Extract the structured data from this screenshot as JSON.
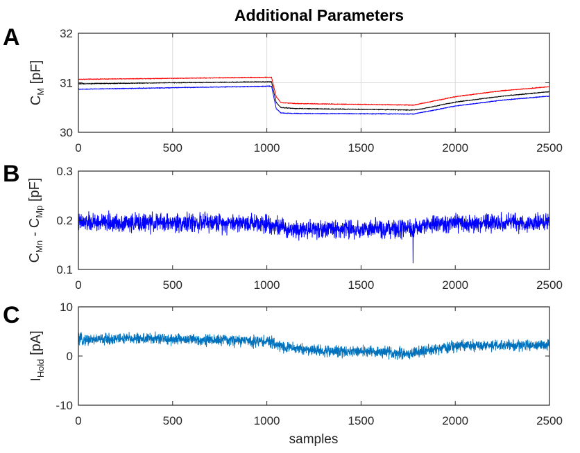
{
  "figure": {
    "title": "Additional Parameters",
    "xlabel": "samples"
  },
  "chart_data": [
    {
      "type": "line",
      "panel_letter": "A",
      "ylabel": {
        "main": "C",
        "sub": "M",
        "unit": " [pF]"
      },
      "xlim": [
        0,
        2500
      ],
      "ylim": [
        30,
        32
      ],
      "xticks": [
        0,
        500,
        1000,
        1500,
        2000,
        2500
      ],
      "yticks": [
        30,
        31,
        32
      ],
      "grid": true,
      "series": [
        {
          "color": "#ff0000",
          "noise": 0.004,
          "x": [
            0,
            1000,
            1025,
            1035,
            1050,
            1075,
            1150,
            1780,
            1820,
            2000,
            2250,
            2500
          ],
          "y": [
            31.07,
            31.11,
            31.11,
            30.95,
            30.72,
            30.6,
            30.58,
            30.55,
            30.58,
            30.72,
            30.84,
            30.92
          ]
        },
        {
          "color": "#000000",
          "noise": 0.004,
          "x": [
            0,
            1000,
            1025,
            1035,
            1050,
            1075,
            1150,
            1780,
            1820,
            2000,
            2250,
            2500
          ],
          "y": [
            30.98,
            31.02,
            31.02,
            30.85,
            30.6,
            30.5,
            30.48,
            30.45,
            30.47,
            30.61,
            30.73,
            30.82
          ]
        },
        {
          "color": "#0000ff",
          "noise": 0.004,
          "x": [
            0,
            1000,
            1025,
            1035,
            1050,
            1075,
            1150,
            1780,
            1820,
            2000,
            2250,
            2500
          ],
          "y": [
            30.87,
            30.93,
            30.93,
            30.75,
            30.48,
            30.39,
            30.38,
            30.37,
            30.4,
            30.53,
            30.65,
            30.73
          ]
        }
      ]
    },
    {
      "type": "line",
      "panel_letter": "B",
      "ylabel": {
        "main": "C",
        "sub": "Mn",
        "mid": " - C",
        "sub2": "Mp",
        "unit": " [pF]"
      },
      "xlim": [
        0,
        2500
      ],
      "ylim": [
        0.1,
        0.3
      ],
      "xticks": [
        0,
        500,
        1000,
        1500,
        2000,
        2500
      ],
      "yticks": [
        0.1,
        0.2,
        0.3
      ],
      "ytick_labels": [
        "0.1",
        "0.2",
        "0.3"
      ],
      "grid": false,
      "series": [
        {
          "color": "#0000ff",
          "noise": 0.009,
          "x": [
            0,
            1000,
            1100,
            1500,
            1780,
            1850,
            2000,
            2500
          ],
          "y": [
            0.195,
            0.195,
            0.183,
            0.182,
            0.181,
            0.192,
            0.193,
            0.195
          ],
          "spikes": [
            [
              1776,
              0.113
            ]
          ]
        }
      ]
    },
    {
      "type": "line",
      "panel_letter": "C",
      "ylabel": {
        "main": "I",
        "sub": "Hold",
        "unit": "  [pA]"
      },
      "xlim": [
        0,
        2500
      ],
      "ylim": [
        -10,
        10
      ],
      "xticks": [
        0,
        500,
        1000,
        1500,
        2000,
        2500
      ],
      "yticks": [
        -10,
        0,
        10
      ],
      "grid": false,
      "series": [
        {
          "color": "#0072bd",
          "noise": 0.55,
          "x": [
            0,
            300,
            800,
            1000,
            1100,
            1300,
            1500,
            1750,
            1850,
            2000,
            2500
          ],
          "y": [
            3.3,
            3.6,
            3.2,
            3.0,
            1.8,
            1.0,
            1.0,
            0.5,
            1.0,
            2.0,
            2.3
          ]
        }
      ]
    }
  ]
}
